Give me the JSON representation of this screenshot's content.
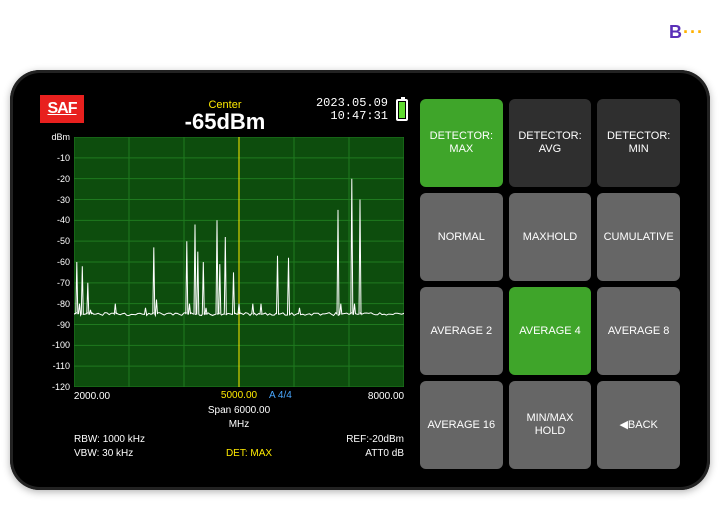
{
  "toplogo": {
    "text": "B",
    "dots": "···"
  },
  "datetime": {
    "date": "2023.05.09",
    "time": "10:47:31"
  },
  "logo": "SAF",
  "marker": {
    "label": "Center",
    "value": "-65dBm"
  },
  "chart": {
    "type": "spectrum",
    "background_color": "#0d4d0d",
    "grid_color": "#1f7a1f",
    "trace_color": "#ffffff",
    "marker_color": "#ffeb00",
    "y_unit": "dBm",
    "ylim": [
      -120,
      0
    ],
    "ytick_step": 10,
    "xlim": [
      2000,
      8000
    ],
    "xticks": [
      2000,
      5000,
      8000
    ],
    "xticklabels": [
      "2000.00",
      "5000.00",
      "8000.00"
    ],
    "center_freq": 5000,
    "span_label": "Span 6000.00",
    "unit_label": "MHz",
    "a_label": "A 4/4",
    "noise_floor": -85,
    "peaks": [
      [
        2050,
        -60
      ],
      [
        2100,
        -80
      ],
      [
        2150,
        -62
      ],
      [
        2250,
        -70
      ],
      [
        2300,
        -83
      ],
      [
        2750,
        -80
      ],
      [
        3300,
        -82
      ],
      [
        3450,
        -53
      ],
      [
        3500,
        -78
      ],
      [
        4050,
        -50
      ],
      [
        4100,
        -80
      ],
      [
        4200,
        -42
      ],
      [
        4250,
        -55
      ],
      [
        4350,
        -60
      ],
      [
        4400,
        -82
      ],
      [
        4600,
        -40
      ],
      [
        4650,
        -61
      ],
      [
        4750,
        -48
      ],
      [
        4900,
        -65
      ],
      [
        5000,
        -80
      ],
      [
        5250,
        -80
      ],
      [
        5400,
        -80
      ],
      [
        5700,
        -57
      ],
      [
        5900,
        -58
      ],
      [
        6100,
        -82
      ],
      [
        6800,
        -35
      ],
      [
        6850,
        -80
      ],
      [
        7050,
        -20
      ],
      [
        7100,
        -80
      ],
      [
        7200,
        -30
      ]
    ]
  },
  "params": {
    "rbw": "RBW: 1000 kHz",
    "vbw": "VBW: 30 kHz",
    "det": "DET: MAX",
    "ref": "REF:-20dBm",
    "att": "ATT0   dB"
  },
  "buttons": [
    {
      "label": "DETECTOR: MAX",
      "style": "active"
    },
    {
      "label": "DETECTOR: AVG",
      "style": "dark"
    },
    {
      "label": "DETECTOR: MIN",
      "style": "dark"
    },
    {
      "label": "NORMAL",
      "style": "normal"
    },
    {
      "label": "MAXHOLD",
      "style": "normal"
    },
    {
      "label": "CUMULATIVE",
      "style": "normal"
    },
    {
      "label": "AVERAGE 2",
      "style": "normal"
    },
    {
      "label": "AVERAGE 4",
      "style": "active"
    },
    {
      "label": "AVERAGE 8",
      "style": "normal"
    },
    {
      "label": "AVERAGE 16",
      "style": "normal"
    },
    {
      "label": "MIN/MAX HOLD",
      "style": "normal"
    },
    {
      "label": "◀BACK",
      "style": "normal"
    }
  ]
}
